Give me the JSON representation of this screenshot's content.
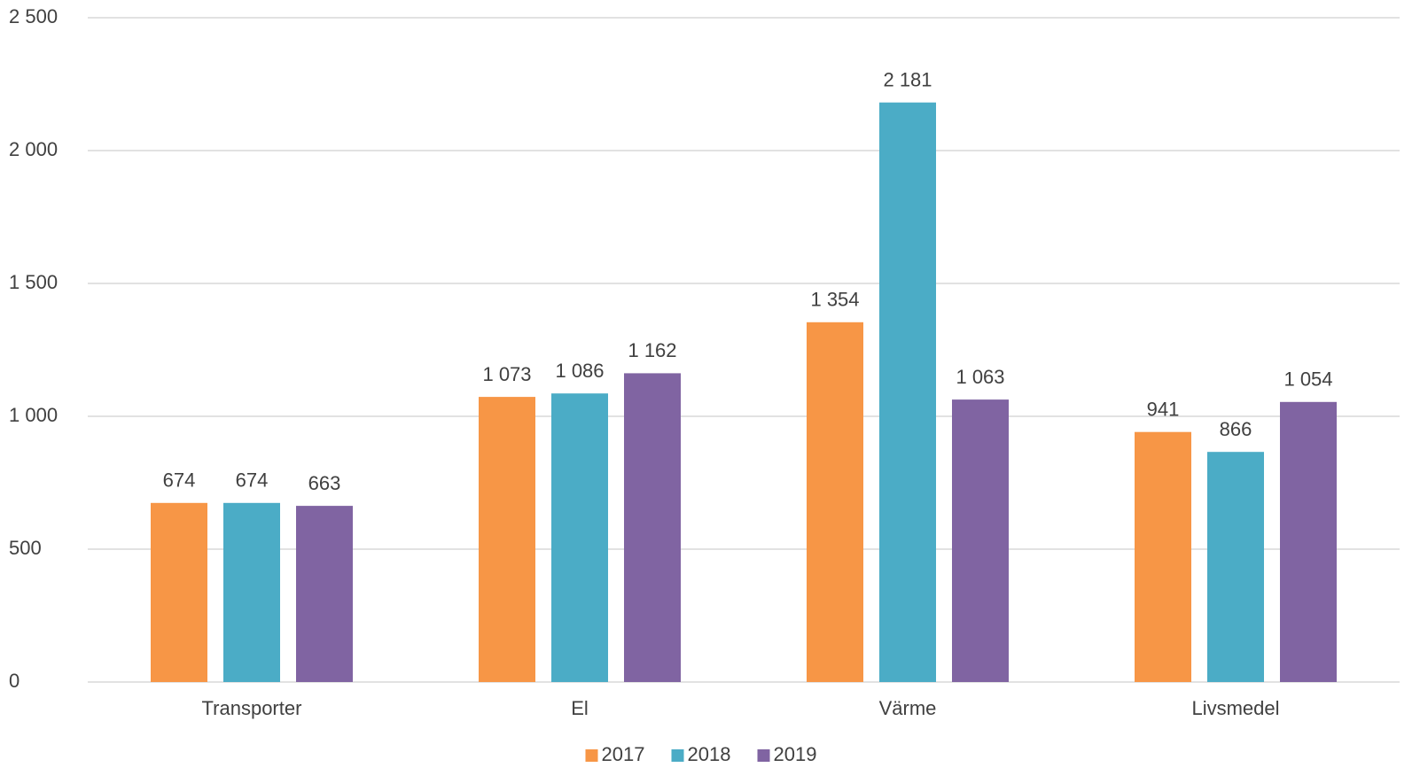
{
  "chart_data": {
    "type": "bar",
    "categories": [
      "Transporter",
      "El",
      "Värme",
      "Livsmedel"
    ],
    "series": [
      {
        "name": "2017",
        "color": "#f79646",
        "values": [
          674,
          1073,
          1354,
          941
        ],
        "value_labels": [
          "674",
          "1 073",
          "1 354",
          "941"
        ]
      },
      {
        "name": "2018",
        "color": "#4bacc6",
        "values": [
          674,
          1086,
          2181,
          866
        ],
        "value_labels": [
          "674",
          "1 086",
          "2 181",
          "866"
        ]
      },
      {
        "name": "2019",
        "color": "#8064a2",
        "values": [
          663,
          1162,
          1063,
          1054
        ],
        "value_labels": [
          "663",
          "1 162",
          "1 063",
          "1 054"
        ]
      }
    ],
    "ylim": [
      0,
      2500
    ],
    "yticks": [
      0,
      500,
      {
        "value": 1000,
        "label": "1 000"
      },
      {
        "value": 1500,
        "label": "1 500"
      },
      {
        "value": 2000,
        "label": "2 000"
      },
      {
        "value": 2500,
        "label": "2 500"
      }
    ],
    "grid": true,
    "legend": "bottom"
  }
}
